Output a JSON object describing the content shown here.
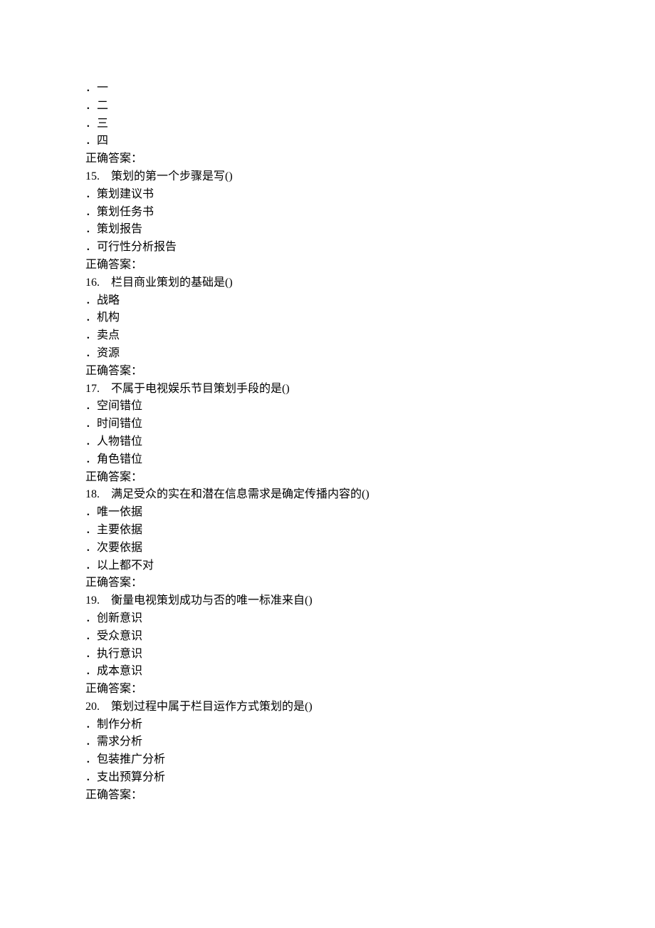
{
  "background_color": "#ffffff",
  "text_color": "#000000",
  "font_family": "SimSun",
  "font_size_pt": 12,
  "line_height": 1.55,
  "answer_label": "正确答案：",
  "separator_after_number": "　",
  "questions": [
    {
      "number": "",
      "text": "",
      "options": [
        "一",
        "二",
        "三",
        "四"
      ],
      "show_number": false
    },
    {
      "number": "15.",
      "text": "策划的第一个步骤是写()",
      "options": [
        "策划建议书",
        "策划任务书",
        "策划报告",
        "可行性分析报告"
      ],
      "show_number": true
    },
    {
      "number": "16.",
      "text": "栏目商业策划的基础是()",
      "options": [
        "战略",
        "机构",
        "卖点",
        "资源"
      ],
      "show_number": true
    },
    {
      "number": "17.",
      "text": "不属于电视娱乐节目策划手段的是()",
      "options": [
        "空间错位",
        "时间错位",
        "人物错位",
        "角色错位"
      ],
      "show_number": true
    },
    {
      "number": "18.",
      "text": "满足受众的实在和潜在信息需求是确定传播内容的()",
      "options": [
        "唯一依据",
        "主要依据",
        "次要依据",
        "以上都不对"
      ],
      "show_number": true
    },
    {
      "number": "19.",
      "text": "衡量电视策划成功与否的唯一标准来自()",
      "options": [
        "创新意识",
        "受众意识",
        "执行意识",
        "成本意识"
      ],
      "show_number": true
    },
    {
      "number": "20.",
      "text": "策划过程中属于栏目运作方式策划的是()",
      "options": [
        "制作分析",
        "需求分析",
        "包装推广分析",
        "支出预算分析"
      ],
      "show_number": true
    }
  ]
}
